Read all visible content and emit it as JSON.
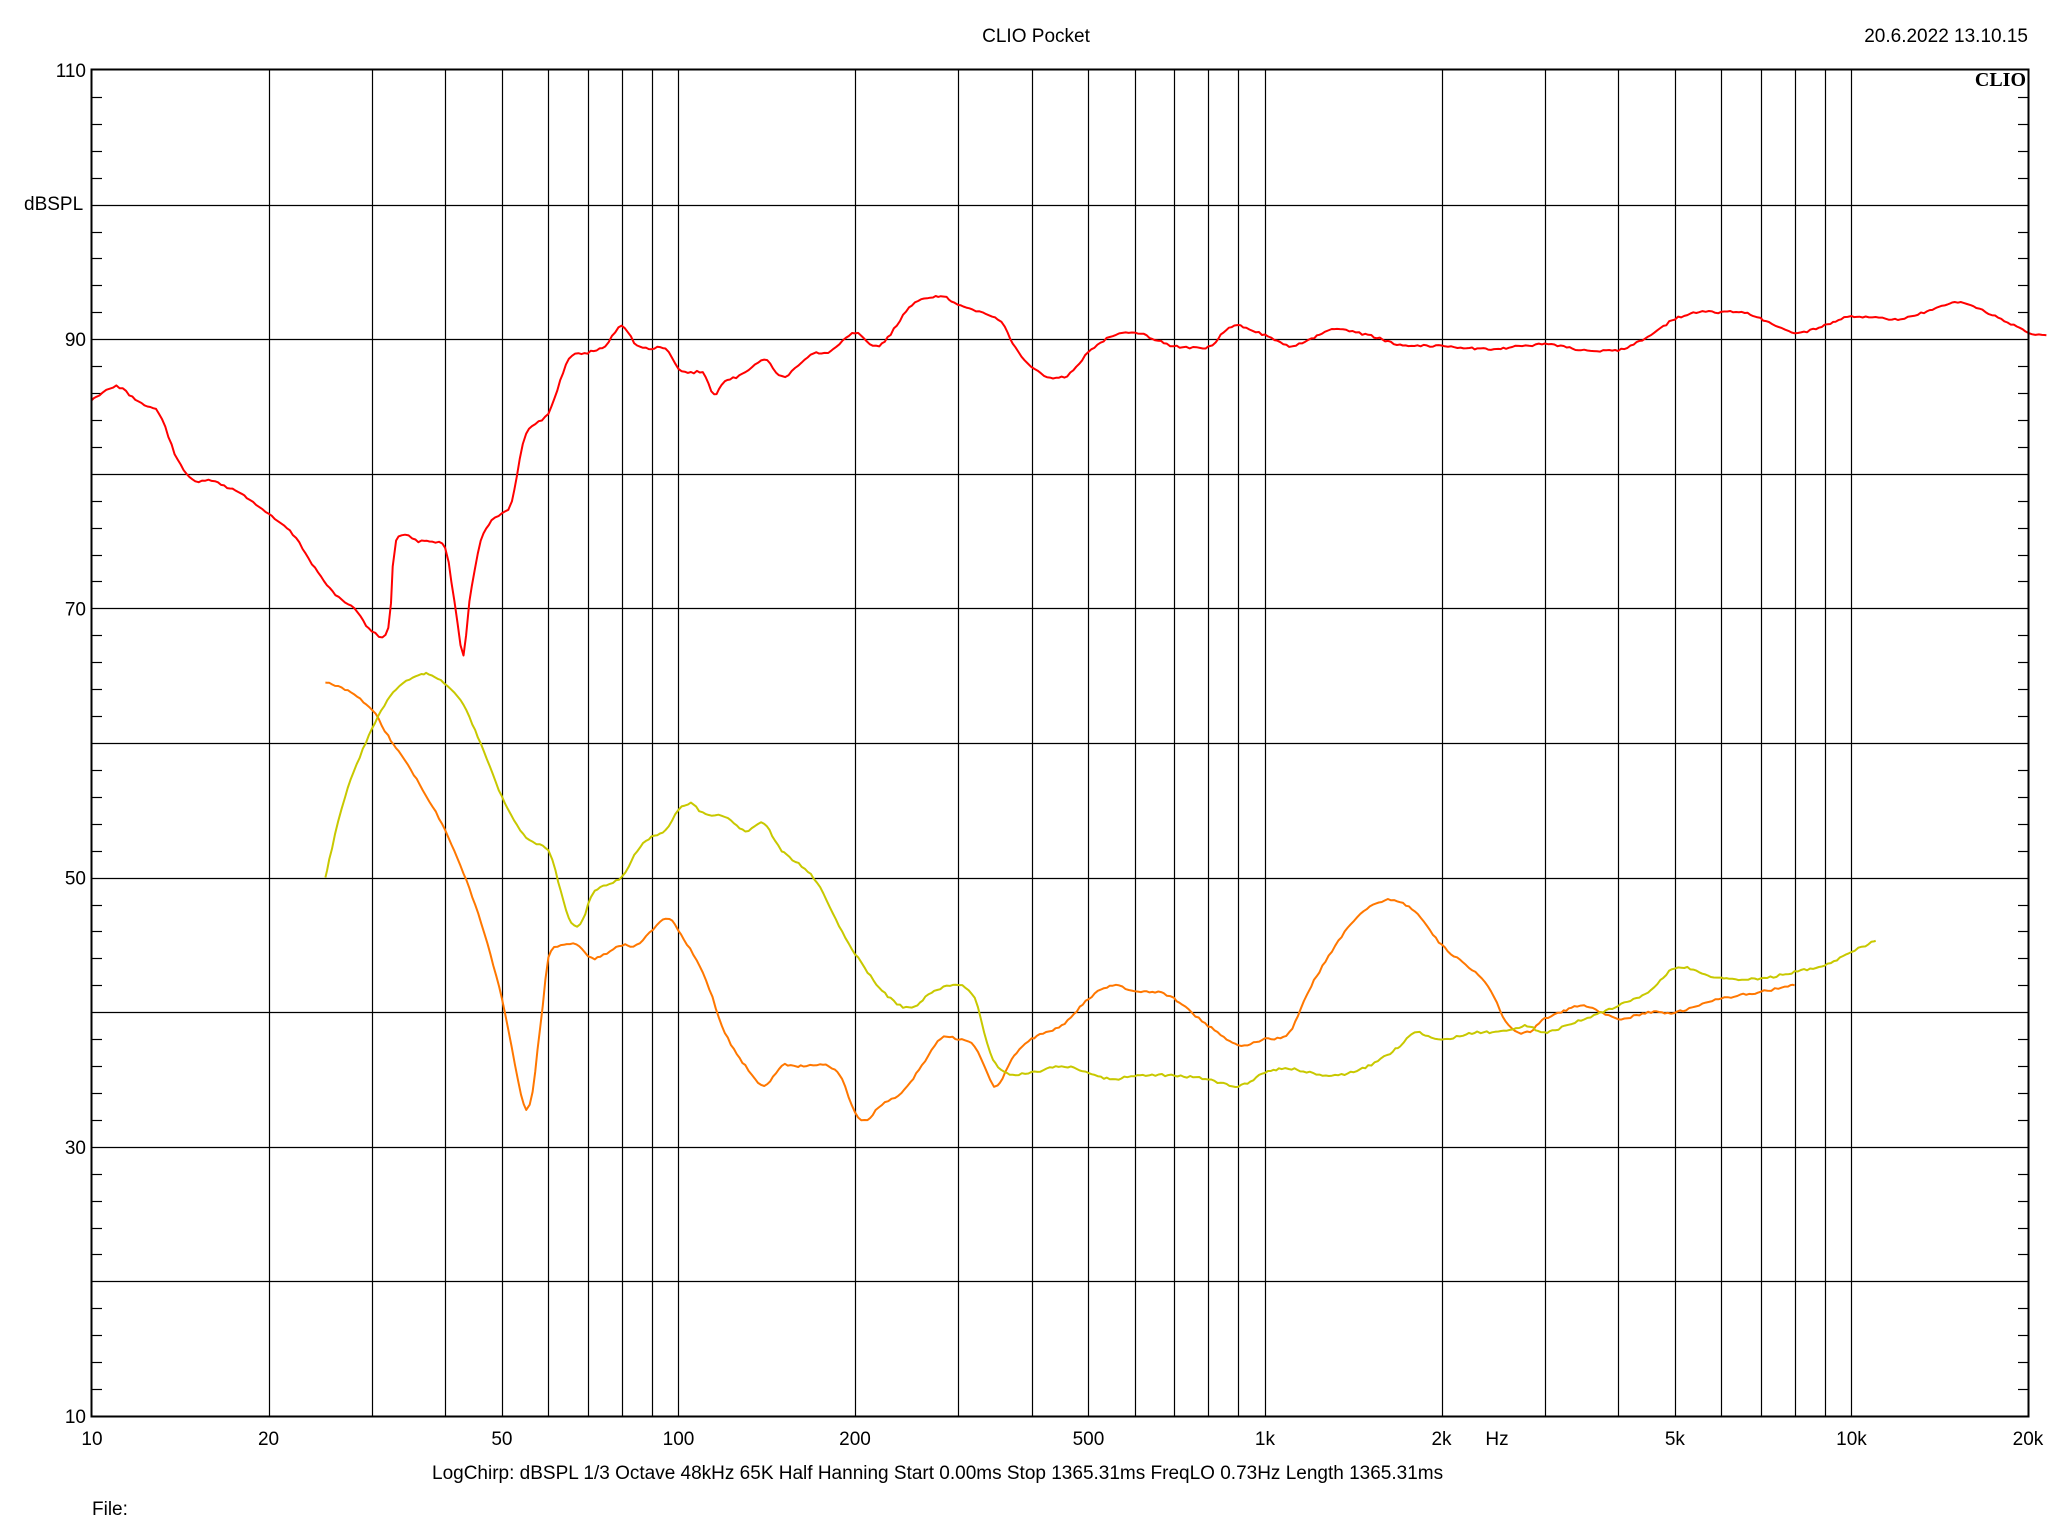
{
  "header": {
    "title": "CLIO Pocket",
    "timestamp": "20.6.2022 13.10.15",
    "logo_text": "CLIO"
  },
  "footer": {
    "settings": "LogChirp:  dBSPL   1/3 Octave   48kHz   65K   Half Hanning   Start 0.00ms    Stop 1365.31ms    FreqLO 0.73Hz    Length 1365.31ms",
    "file_label": "File:"
  },
  "colors": {
    "background": "#ffffff",
    "grid": "#000000",
    "red": "#ff0000",
    "orange": "#ff7700",
    "yellow": "#c8c800"
  },
  "chart_data": {
    "type": "line",
    "x_scale": "log",
    "ylabel": "dBSPL",
    "xlabel": "Hz",
    "xlim": [
      10,
      20000
    ],
    "ylim": [
      10,
      110
    ],
    "grid": true,
    "x_ticks": [
      {
        "value": 10,
        "label": "10"
      },
      {
        "value": 20,
        "label": "20"
      },
      {
        "value": 50,
        "label": "50"
      },
      {
        "value": 100,
        "label": "100"
      },
      {
        "value": 200,
        "label": "200"
      },
      {
        "value": 500,
        "label": "500"
      },
      {
        "value": 1000,
        "label": "1k"
      },
      {
        "value": 2000,
        "label": "2k"
      },
      {
        "value": 5000,
        "label": "5k"
      },
      {
        "value": 10000,
        "label": "10k"
      },
      {
        "value": 20000,
        "label": "20k"
      }
    ],
    "y_ticks": [
      {
        "value": 10,
        "label": "10"
      },
      {
        "value": 30,
        "label": "30"
      },
      {
        "value": 50,
        "label": "50"
      },
      {
        "value": 70,
        "label": "70"
      },
      {
        "value": 90,
        "label": "90"
      },
      {
        "value": 110,
        "label": "110"
      }
    ],
    "series": [
      {
        "color": "#ff0000",
        "points": [
          [
            10,
            85.5
          ],
          [
            11,
            86.5
          ],
          [
            12,
            85.3
          ],
          [
            13,
            84.5
          ],
          [
            14,
            81
          ],
          [
            15,
            79.5
          ],
          [
            16,
            79.5
          ],
          [
            17,
            79
          ],
          [
            18,
            78.5
          ],
          [
            20,
            77
          ],
          [
            22,
            75.5
          ],
          [
            24,
            73
          ],
          [
            26,
            71
          ],
          [
            28,
            70
          ],
          [
            30,
            68.3
          ],
          [
            32,
            68.5
          ],
          [
            33,
            75
          ],
          [
            36,
            75
          ],
          [
            38,
            75
          ],
          [
            40,
            74.5
          ],
          [
            41,
            72
          ],
          [
            42,
            69
          ],
          [
            43,
            66.5
          ],
          [
            44,
            70.5
          ],
          [
            46,
            75
          ],
          [
            48,
            76.5
          ],
          [
            50,
            77
          ],
          [
            52,
            78
          ],
          [
            55,
            83
          ],
          [
            60,
            84.5
          ],
          [
            65,
            88.5
          ],
          [
            70,
            89
          ],
          [
            75,
            89.5
          ],
          [
            80,
            91
          ],
          [
            85,
            89.5
          ],
          [
            90,
            89.3
          ],
          [
            95,
            89.3
          ],
          [
            100,
            87.8
          ],
          [
            105,
            87.5
          ],
          [
            110,
            87.5
          ],
          [
            115,
            85.9
          ],
          [
            120,
            86.8
          ],
          [
            130,
            87.5
          ],
          [
            140,
            88.5
          ],
          [
            150,
            87.2
          ],
          [
            160,
            88
          ],
          [
            170,
            89
          ],
          [
            180,
            89
          ],
          [
            200,
            90.5
          ],
          [
            220,
            89.5
          ],
          [
            250,
            92.5
          ],
          [
            280,
            93.2
          ],
          [
            300,
            92.5
          ],
          [
            350,
            91.5
          ],
          [
            380,
            89
          ],
          [
            420,
            87.3
          ],
          [
            460,
            87.3
          ],
          [
            500,
            89
          ],
          [
            550,
            90.3
          ],
          [
            600,
            90.5
          ],
          [
            650,
            90
          ],
          [
            700,
            89.5
          ],
          [
            800,
            89.4
          ],
          [
            850,
            90.5
          ],
          [
            900,
            91
          ],
          [
            1000,
            90.3
          ],
          [
            1100,
            89.5
          ],
          [
            1200,
            90
          ],
          [
            1300,
            90.7
          ],
          [
            1500,
            90.3
          ],
          [
            1700,
            89.6
          ],
          [
            2000,
            89.5
          ],
          [
            2300,
            89.3
          ],
          [
            2500,
            89.3
          ],
          [
            3000,
            89.6
          ],
          [
            3500,
            89.2
          ],
          [
            4000,
            89.2
          ],
          [
            4500,
            90.2
          ],
          [
            5000,
            91.5
          ],
          [
            5500,
            92
          ],
          [
            6000,
            92
          ],
          [
            6500,
            92
          ],
          [
            7000,
            91.5
          ],
          [
            8000,
            90.5
          ],
          [
            9000,
            91
          ],
          [
            10000,
            91.7
          ],
          [
            12000,
            91.5
          ],
          [
            14000,
            92.3
          ],
          [
            15000,
            92.7
          ],
          [
            16000,
            92.5
          ],
          [
            18000,
            91.5
          ],
          [
            20000,
            90.5
          ],
          [
            21500,
            90.3
          ]
        ]
      },
      {
        "color": "#ff7700",
        "points": [
          [
            25,
            64.5
          ],
          [
            27,
            64
          ],
          [
            30,
            62.5
          ],
          [
            32,
            60.5
          ],
          [
            35,
            58
          ],
          [
            40,
            53.5
          ],
          [
            45,
            48
          ],
          [
            50,
            41
          ],
          [
            55,
            32.8
          ],
          [
            58,
            38.5
          ],
          [
            60,
            44
          ],
          [
            63,
            45
          ],
          [
            67,
            45
          ],
          [
            72,
            44
          ],
          [
            80,
            45
          ],
          [
            85,
            45
          ],
          [
            95,
            47
          ],
          [
            100,
            46
          ],
          [
            110,
            43
          ],
          [
            120,
            38.5
          ],
          [
            130,
            36
          ],
          [
            140,
            34.5
          ],
          [
            150,
            36
          ],
          [
            160,
            36
          ],
          [
            180,
            36
          ],
          [
            190,
            35
          ],
          [
            200,
            32.5
          ],
          [
            210,
            32
          ],
          [
            220,
            33
          ],
          [
            240,
            34
          ],
          [
            260,
            36
          ],
          [
            280,
            38
          ],
          [
            300,
            38
          ],
          [
            320,
            37.5
          ],
          [
            340,
            35
          ],
          [
            350,
            34.5
          ],
          [
            370,
            36.5
          ],
          [
            400,
            38
          ],
          [
            450,
            39
          ],
          [
            500,
            41
          ],
          [
            550,
            42
          ],
          [
            600,
            41.5
          ],
          [
            650,
            41.5
          ],
          [
            700,
            41
          ],
          [
            800,
            39
          ],
          [
            900,
            37.6
          ],
          [
            1000,
            38
          ],
          [
            1100,
            38.5
          ],
          [
            1200,
            42
          ],
          [
            1400,
            46.5
          ],
          [
            1600,
            48.3
          ],
          [
            1800,
            47.5
          ],
          [
            2000,
            45
          ],
          [
            2200,
            43.5
          ],
          [
            2400,
            42
          ],
          [
            2600,
            39
          ],
          [
            2800,
            38.5
          ],
          [
            3000,
            39.5
          ],
          [
            3200,
            40
          ],
          [
            3500,
            40.5
          ],
          [
            4000,
            39.5
          ],
          [
            4500,
            40
          ],
          [
            5000,
            40
          ],
          [
            6000,
            41
          ],
          [
            7000,
            41.5
          ],
          [
            8000,
            42
          ]
        ]
      },
      {
        "color": "#c8c800",
        "points": [
          [
            25,
            50
          ],
          [
            27,
            56
          ],
          [
            30,
            61
          ],
          [
            33,
            64
          ],
          [
            36,
            65
          ],
          [
            38,
            65
          ],
          [
            42,
            63.5
          ],
          [
            46,
            60
          ],
          [
            50,
            56
          ],
          [
            55,
            53
          ],
          [
            60,
            52
          ],
          [
            63,
            49
          ],
          [
            65,
            47
          ],
          [
            68,
            46.5
          ],
          [
            72,
            49
          ],
          [
            80,
            50
          ],
          [
            85,
            52
          ],
          [
            90,
            53
          ],
          [
            95,
            53.5
          ],
          [
            100,
            55
          ],
          [
            105,
            55.5
          ],
          [
            110,
            54.8
          ],
          [
            120,
            54.5
          ],
          [
            130,
            53.5
          ],
          [
            140,
            54
          ],
          [
            150,
            52
          ],
          [
            170,
            50
          ],
          [
            190,
            46
          ],
          [
            210,
            43
          ],
          [
            230,
            41
          ],
          [
            250,
            40.3
          ],
          [
            270,
            41.5
          ],
          [
            300,
            42
          ],
          [
            320,
            41
          ],
          [
            340,
            37
          ],
          [
            360,
            35.5
          ],
          [
            400,
            35.5
          ],
          [
            450,
            36
          ],
          [
            500,
            35.5
          ],
          [
            550,
            35
          ],
          [
            600,
            35.3
          ],
          [
            700,
            35.3
          ],
          [
            800,
            35
          ],
          [
            900,
            34.5
          ],
          [
            1000,
            35.5
          ],
          [
            1100,
            35.8
          ],
          [
            1300,
            35.3
          ],
          [
            1500,
            36
          ],
          [
            1700,
            37.5
          ],
          [
            1800,
            38.5
          ],
          [
            2000,
            38
          ],
          [
            2300,
            38.5
          ],
          [
            2500,
            38.5
          ],
          [
            2800,
            39
          ],
          [
            3000,
            38.5
          ],
          [
            3500,
            39.5
          ],
          [
            4000,
            40.5
          ],
          [
            4500,
            41.5
          ],
          [
            5000,
            43.3
          ],
          [
            5500,
            43
          ],
          [
            6000,
            42.5
          ],
          [
            7000,
            42.5
          ],
          [
            8000,
            43
          ],
          [
            9000,
            43.5
          ],
          [
            10000,
            44.5
          ],
          [
            11000,
            45.3
          ]
        ]
      }
    ]
  }
}
